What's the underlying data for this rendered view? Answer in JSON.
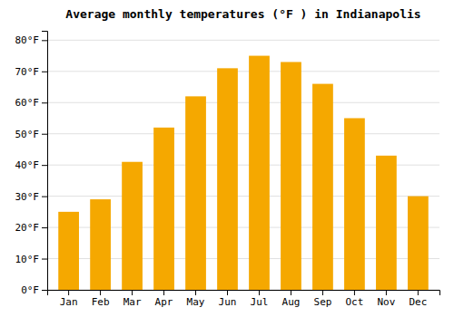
{
  "chart_data": {
    "type": "bar",
    "title": "Average monthly temperatures (°F ) in Indianapolis",
    "categories": [
      "Jan",
      "Feb",
      "Mar",
      "Apr",
      "May",
      "Jun",
      "Jul",
      "Aug",
      "Sep",
      "Oct",
      "Nov",
      "Dec"
    ],
    "values": [
      25,
      29,
      41,
      52,
      62,
      71,
      75,
      73,
      66,
      55,
      43,
      30
    ],
    "color": "#F5A800",
    "ylim": [
      0,
      83
    ],
    "yticks": [
      {
        "value": 0,
        "label": "0°F"
      },
      {
        "value": 10,
        "label": "10°F"
      },
      {
        "value": 20,
        "label": "20°F"
      },
      {
        "value": 30,
        "label": "30°F"
      },
      {
        "value": 40,
        "label": "40°F"
      },
      {
        "value": 50,
        "label": "50°F"
      },
      {
        "value": 60,
        "label": "60°F"
      },
      {
        "value": 70,
        "label": "70°F"
      },
      {
        "value": 80,
        "label": "80°F"
      }
    ],
    "grid": true
  }
}
